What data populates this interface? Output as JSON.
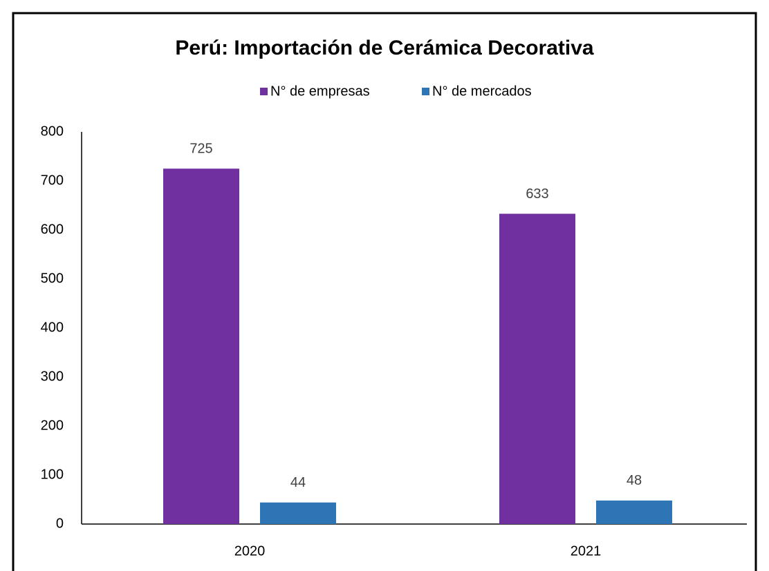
{
  "chart_data": {
    "type": "bar",
    "title": "Perú: Importación de Cerámica Decorativa",
    "categories": [
      "2020",
      "2021"
    ],
    "series": [
      {
        "name": "N° de empresas",
        "color": "#7030a0",
        "values": [
          725,
          633
        ]
      },
      {
        "name": "N° de mercados",
        "color": "#2e75b6",
        "values": [
          44,
          48
        ]
      }
    ],
    "ylim": [
      0,
      800
    ],
    "yticks": [
      0,
      100,
      200,
      300,
      400,
      500,
      600,
      700,
      800
    ],
    "grid": false,
    "legend": "top"
  }
}
